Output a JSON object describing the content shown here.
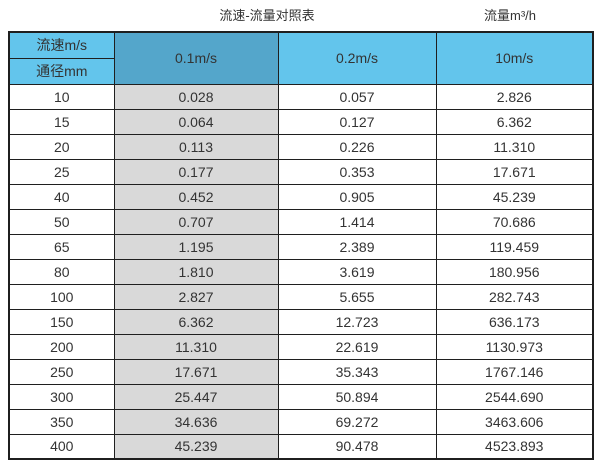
{
  "chart_data": {
    "type": "table",
    "title": "流速-流量对照表",
    "unit_label": "流量m³/h",
    "row_header_label": "流速m/s",
    "col_header_label": "通径mm",
    "columns": [
      "0.1m/s",
      "0.2m/s",
      "10m/s"
    ],
    "diameters_mm": [
      10,
      15,
      20,
      25,
      40,
      50,
      65,
      80,
      100,
      150,
      200,
      250,
      300,
      350,
      400
    ],
    "rows": [
      [
        "0.028",
        "0.057",
        "2.826"
      ],
      [
        "0.064",
        "0.127",
        "6.362"
      ],
      [
        "0.113",
        "0.226",
        "11.310"
      ],
      [
        "0.177",
        "0.353",
        "17.671"
      ],
      [
        "0.452",
        "0.905",
        "45.239"
      ],
      [
        "0.707",
        "1.414",
        "70.686"
      ],
      [
        "1.195",
        "2.389",
        "119.459"
      ],
      [
        "1.810",
        "3.619",
        "180.956"
      ],
      [
        "2.827",
        "5.655",
        "282.743"
      ],
      [
        "6.362",
        "12.723",
        "636.173"
      ],
      [
        "11.310",
        "22.619",
        "1130.973"
      ],
      [
        "17.671",
        "35.343",
        "1767.146"
      ],
      [
        "25.447",
        "50.894",
        "2544.690"
      ],
      [
        "34.636",
        "69.272",
        "3463.606"
      ],
      [
        "45.239",
        "90.478",
        "4523.893"
      ]
    ],
    "layout": {
      "highlighted_column": "0.1m/s",
      "grid": true
    }
  },
  "colors": {
    "header_light": "#63C5EC",
    "header_dark": "#54A6CB",
    "column_gray": "#D9D9D9",
    "border": "#1F1F1F",
    "text": "#333333"
  }
}
